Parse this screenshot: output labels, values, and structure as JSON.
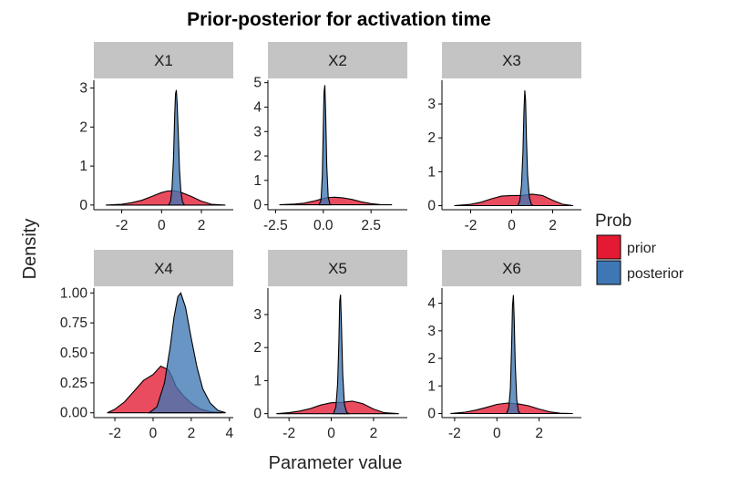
{
  "chart_data": {
    "type": "area",
    "title": "Prior-posterior for activation time",
    "xlabel": "Parameter value",
    "ylabel": "Density",
    "legend": {
      "title": "Prob",
      "placement": "right",
      "entries": [
        {
          "label": "prior",
          "color": "#e41a32"
        },
        {
          "label": "posterior",
          "color": "#3f77b4"
        }
      ]
    },
    "grid": false,
    "panels": [
      {
        "name": "X1",
        "xlim": [
          -3.4,
          3.6
        ],
        "ylim": [
          -0.12,
          3.2
        ],
        "xticks": [
          -2,
          0,
          2
        ],
        "xtick_labels": [
          "-2",
          "0",
          "2"
        ],
        "yticks": [
          0,
          1,
          2,
          3
        ],
        "ytick_labels": [
          "0",
          "1",
          "2",
          "3"
        ],
        "prior": {
          "x": [
            -2.8,
            -2.0,
            -1.5,
            -1.0,
            -0.5,
            0.0,
            0.3,
            0.6,
            0.8,
            1.0,
            1.5,
            2.0,
            2.5,
            3.2
          ],
          "y": [
            0.0,
            0.02,
            0.06,
            0.12,
            0.22,
            0.32,
            0.36,
            0.37,
            0.35,
            0.32,
            0.22,
            0.1,
            0.02,
            0.0
          ]
        },
        "posterior": {
          "x": [
            0.35,
            0.45,
            0.52,
            0.6,
            0.66,
            0.7,
            0.74,
            0.78,
            0.84,
            0.9,
            0.97,
            1.05,
            1.15
          ],
          "y": [
            0.0,
            0.1,
            0.4,
            1.2,
            2.3,
            2.85,
            2.95,
            2.6,
            1.8,
            0.9,
            0.35,
            0.08,
            0.0
          ]
        }
      },
      {
        "name": "X2",
        "xlim": [
          -2.9,
          4.4
        ],
        "ylim": [
          -0.2,
          5.1
        ],
        "xticks": [
          -2.5,
          0,
          2.5
        ],
        "xtick_labels": [
          "-2.5",
          "0.0",
          "2.5"
        ],
        "yticks": [
          0,
          1,
          2,
          3,
          4,
          5
        ],
        "ytick_labels": [
          "0",
          "1",
          "2",
          "3",
          "4",
          "5"
        ],
        "prior": {
          "x": [
            -2.3,
            -1.5,
            -1.0,
            -0.5,
            0.0,
            0.3,
            0.6,
            1.0,
            1.5,
            2.0,
            2.5,
            3.0,
            3.6
          ],
          "y": [
            0.0,
            0.03,
            0.07,
            0.15,
            0.26,
            0.3,
            0.31,
            0.29,
            0.22,
            0.12,
            0.05,
            0.01,
            0.0
          ]
        },
        "posterior": {
          "x": [
            -0.22,
            -0.12,
            -0.05,
            0.0,
            0.04,
            0.08,
            0.12,
            0.18,
            0.26,
            0.36
          ],
          "y": [
            0.0,
            0.2,
            1.2,
            3.2,
            4.6,
            4.9,
            3.9,
            1.6,
            0.3,
            0.0
          ]
        }
      },
      {
        "name": "X3",
        "xlim": [
          -3.4,
          3.4
        ],
        "ylim": [
          -0.12,
          3.7
        ],
        "xticks": [
          -2,
          0,
          2
        ],
        "xtick_labels": [
          "-2",
          "0",
          "2"
        ],
        "yticks": [
          0,
          1,
          2,
          3
        ],
        "ytick_labels": [
          "0",
          "1",
          "2",
          "3"
        ],
        "prior": {
          "x": [
            -2.8,
            -2.0,
            -1.5,
            -1.0,
            -0.5,
            0.0,
            0.5,
            1.0,
            1.5,
            2.0,
            2.5,
            3.0
          ],
          "y": [
            0.0,
            0.04,
            0.1,
            0.2,
            0.28,
            0.3,
            0.3,
            0.34,
            0.3,
            0.16,
            0.04,
            0.0
          ]
        },
        "posterior": {
          "x": [
            0.3,
            0.4,
            0.48,
            0.55,
            0.6,
            0.64,
            0.68,
            0.72,
            0.78,
            0.86,
            0.96,
            1.05
          ],
          "y": [
            0.0,
            0.15,
            0.6,
            1.6,
            2.8,
            3.4,
            3.1,
            2.0,
            0.9,
            0.25,
            0.04,
            0.0
          ]
        }
      },
      {
        "name": "X4",
        "xlim": [
          -3.1,
          4.2
        ],
        "ylim": [
          -0.04,
          1.04
        ],
        "xticks": [
          -2,
          0,
          2,
          4
        ],
        "xtick_labels": [
          "-2",
          "0",
          "2",
          "4"
        ],
        "yticks": [
          0,
          0.25,
          0.5,
          0.75,
          1.0
        ],
        "ytick_labels": [
          "0.00",
          "0.25",
          "0.50",
          "0.75",
          "1.00"
        ],
        "prior": {
          "x": [
            -2.4,
            -2.0,
            -1.5,
            -1.0,
            -0.5,
            0.0,
            0.4,
            0.8,
            1.0,
            1.2,
            1.6,
            2.0,
            2.5,
            3.0,
            3.6
          ],
          "y": [
            0.0,
            0.03,
            0.09,
            0.18,
            0.27,
            0.32,
            0.39,
            0.36,
            0.3,
            0.22,
            0.14,
            0.08,
            0.03,
            0.01,
            0.0
          ]
        },
        "posterior": {
          "x": [
            -0.2,
            0.2,
            0.6,
            0.9,
            1.1,
            1.3,
            1.45,
            1.7,
            2.0,
            2.3,
            2.6,
            3.0,
            3.4,
            3.8
          ],
          "y": [
            0.0,
            0.05,
            0.25,
            0.55,
            0.8,
            0.97,
            1.0,
            0.88,
            0.62,
            0.38,
            0.2,
            0.08,
            0.02,
            0.0
          ]
        }
      },
      {
        "name": "X5",
        "xlim": [
          -3.0,
          3.6
        ],
        "ylim": [
          -0.12,
          3.8
        ],
        "xticks": [
          -2,
          0,
          2
        ],
        "xtick_labels": [
          "-2",
          "0",
          "2"
        ],
        "yticks": [
          0,
          1,
          2,
          3
        ],
        "ytick_labels": [
          "0",
          "1",
          "2",
          "3"
        ],
        "prior": {
          "x": [
            -2.6,
            -2.0,
            -1.5,
            -1.0,
            -0.5,
            0.0,
            0.5,
            1.0,
            1.5,
            2.0,
            2.5,
            3.2
          ],
          "y": [
            0.0,
            0.03,
            0.08,
            0.15,
            0.26,
            0.33,
            0.34,
            0.38,
            0.3,
            0.14,
            0.03,
            0.0
          ]
        },
        "posterior": {
          "x": [
            0.1,
            0.22,
            0.3,
            0.36,
            0.4,
            0.44,
            0.48,
            0.54,
            0.62,
            0.72,
            0.82
          ],
          "y": [
            0.0,
            0.2,
            0.9,
            2.2,
            3.4,
            3.6,
            2.7,
            1.2,
            0.3,
            0.05,
            0.0
          ]
        }
      },
      {
        "name": "X6",
        "xlim": [
          -2.6,
          4.0
        ],
        "ylim": [
          -0.15,
          4.55
        ],
        "xticks": [
          -2,
          0,
          2
        ],
        "xtick_labels": [
          "-2",
          "0",
          "2"
        ],
        "yticks": [
          0,
          1,
          2,
          3,
          4
        ],
        "ytick_labels": [
          "0",
          "1",
          "2",
          "3",
          "4"
        ],
        "prior": {
          "x": [
            -2.2,
            -1.5,
            -1.0,
            -0.5,
            0.0,
            0.5,
            1.0,
            1.5,
            2.0,
            2.5,
            3.0,
            3.6
          ],
          "y": [
            0.0,
            0.05,
            0.12,
            0.22,
            0.33,
            0.38,
            0.35,
            0.28,
            0.16,
            0.06,
            0.01,
            0.0
          ]
        },
        "posterior": {
          "x": [
            0.45,
            0.56,
            0.64,
            0.7,
            0.74,
            0.78,
            0.82,
            0.87,
            0.94,
            1.02,
            1.12
          ],
          "y": [
            0.0,
            0.2,
            0.9,
            2.5,
            3.9,
            4.3,
            3.4,
            1.8,
            0.5,
            0.08,
            0.0
          ]
        }
      }
    ]
  }
}
